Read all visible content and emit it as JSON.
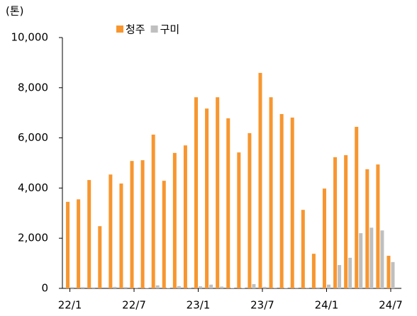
{
  "chart_data": {
    "type": "bar",
    "unit_label": "(톤)",
    "categories": [
      "22/1",
      null,
      null,
      null,
      null,
      null,
      "22/7",
      null,
      null,
      null,
      null,
      null,
      "23/1",
      null,
      null,
      null,
      null,
      null,
      "23/7",
      null,
      null,
      null,
      null,
      null,
      "24/1",
      null,
      null,
      null,
      null,
      null,
      "24/7"
    ],
    "series": [
      {
        "name": "청주",
        "color": "#f7962f",
        "values": [
          3450,
          3550,
          4320,
          2480,
          4540,
          4180,
          5080,
          5110,
          6130,
          4290,
          5400,
          5700,
          7620,
          7170,
          7620,
          6780,
          5420,
          6190,
          8590,
          7620,
          6950,
          6810,
          3130,
          1380,
          3980,
          5230,
          5310,
          6440,
          4750,
          4940,
          1300
        ]
      },
      {
        "name": "구미",
        "color": "#bfbfbf",
        "values": [
          50,
          50,
          40,
          0,
          60,
          50,
          30,
          20,
          120,
          20,
          90,
          30,
          80,
          150,
          70,
          20,
          20,
          170,
          60,
          30,
          20,
          30,
          30,
          40,
          150,
          930,
          1220,
          2200,
          2420,
          2310,
          1050
        ]
      }
    ],
    "ylim": [
      0,
      10000
    ],
    "yticks": [
      0,
      {
        "value": 2000,
        "label": "2,000"
      },
      {
        "value": 4000,
        "label": "4,000"
      },
      {
        "value": 6000,
        "label": "6,000"
      },
      {
        "value": 8000,
        "label": "8,000"
      },
      {
        "value": 10000,
        "label": "10,000"
      }
    ],
    "legend": "top"
  }
}
